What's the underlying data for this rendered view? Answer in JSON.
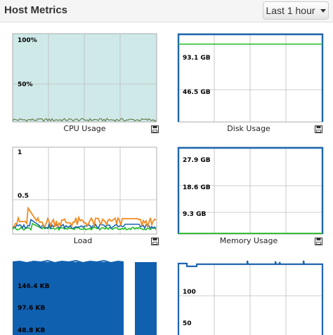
{
  "header": {
    "title": "Host Metrics",
    "range_label": "Last 1 hour"
  },
  "colors": {
    "cpu_fill": "#cfe9e9",
    "blue": "#1f66b0",
    "green": "#22bb22",
    "orange": "#f28a1e",
    "grid": "#bbbbbb",
    "block": "#1060b0"
  },
  "charts": {
    "cpu": {
      "caption": "CPU Usage",
      "ticks": [
        "100%",
        "50%"
      ]
    },
    "disk": {
      "caption": "Disk Usage",
      "ticks": [
        "93.1 GB",
        "46.5 GB"
      ]
    },
    "load": {
      "caption": "Load",
      "ticks": [
        "1",
        "0.5"
      ]
    },
    "memory": {
      "caption": "Memory Usage",
      "ticks": [
        "27.9 GB",
        "18.6 GB",
        "9.3 GB"
      ]
    },
    "network": {
      "caption": "",
      "ticks": [
        "146.4 KB",
        "97.6 KB",
        "48.8 KB"
      ]
    },
    "processes": {
      "caption": "",
      "ticks": [
        "100",
        "50"
      ]
    }
  },
  "icons": {
    "save": "floppy-disk-icon"
  }
}
